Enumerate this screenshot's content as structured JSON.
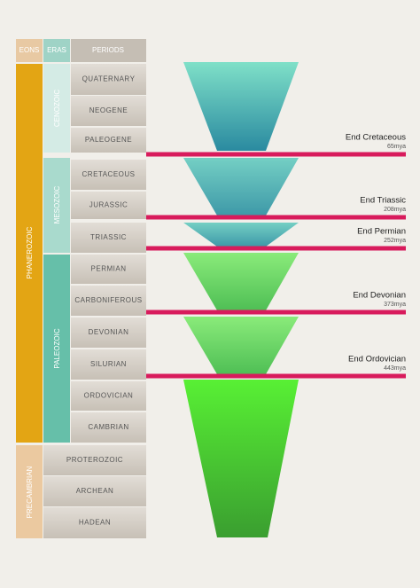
{
  "header": {
    "eons": "EONS",
    "eras": "ERAS",
    "periods": "PERIODS"
  },
  "eons": [
    "PHANEROZOIC",
    "PRECAMBRIAN"
  ],
  "eras": [
    "CENOZOIC",
    "MESOZOIC",
    "PALEOZOIC"
  ],
  "periods": [
    "QUATERNARY",
    "NEOGENE",
    "PALEOGENE",
    "CRETACEOUS",
    "JURASSIC",
    "TRIASSIC",
    "PERMIAN",
    "CARBONIFEROUS",
    "DEVONIAN",
    "SILURIAN",
    "ORDOVICIAN",
    "CAMBRIAN",
    "PROTEROZOIC",
    "ARCHEAN",
    "HADEAN"
  ],
  "events": [
    {
      "name": "End Cretaceous",
      "age": "65mya"
    },
    {
      "name": "End Triassic",
      "age": "208mya"
    },
    {
      "name": "End Permian",
      "age": "252mya"
    },
    {
      "name": "End Devonian",
      "age": "373mya"
    },
    {
      "name": "End Ordovician",
      "age": "443mya"
    }
  ]
}
